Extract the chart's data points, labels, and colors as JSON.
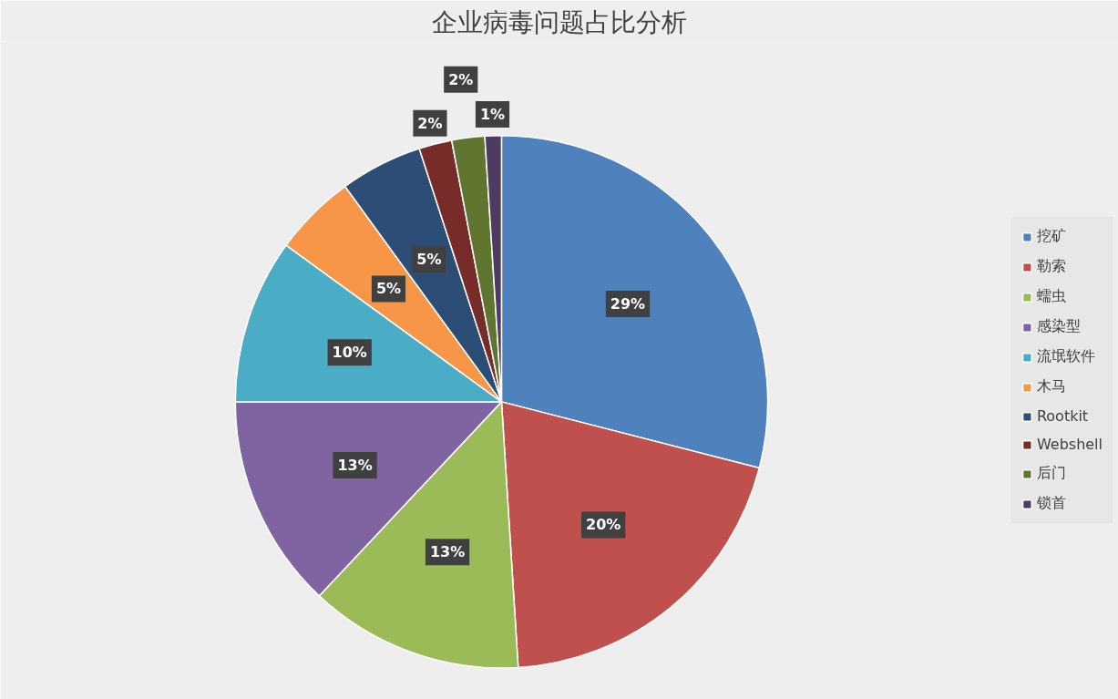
{
  "chart_data": {
    "type": "pie",
    "title": "企业病毒问题占比分析",
    "categories": [
      "挖矿",
      "勒索",
      "蠕虫",
      "感染型",
      "流氓软件",
      "木马",
      "Rootkit",
      "Webshell",
      "后门",
      "锁首"
    ],
    "values": [
      29,
      20,
      13,
      13,
      10,
      5,
      5,
      2,
      2,
      1
    ],
    "value_labels": [
      "29%",
      "20%",
      "13%",
      "13%",
      "10%",
      "5%",
      "5%",
      "2%",
      "2%",
      "1%"
    ],
    "colors": [
      "#4f81bd",
      "#c0504d",
      "#9bbb59",
      "#8064a2",
      "#4bacc6",
      "#f79646",
      "#2c4d75",
      "#772c2a",
      "#5f7530",
      "#4d3b62"
    ],
    "legend": "right"
  }
}
